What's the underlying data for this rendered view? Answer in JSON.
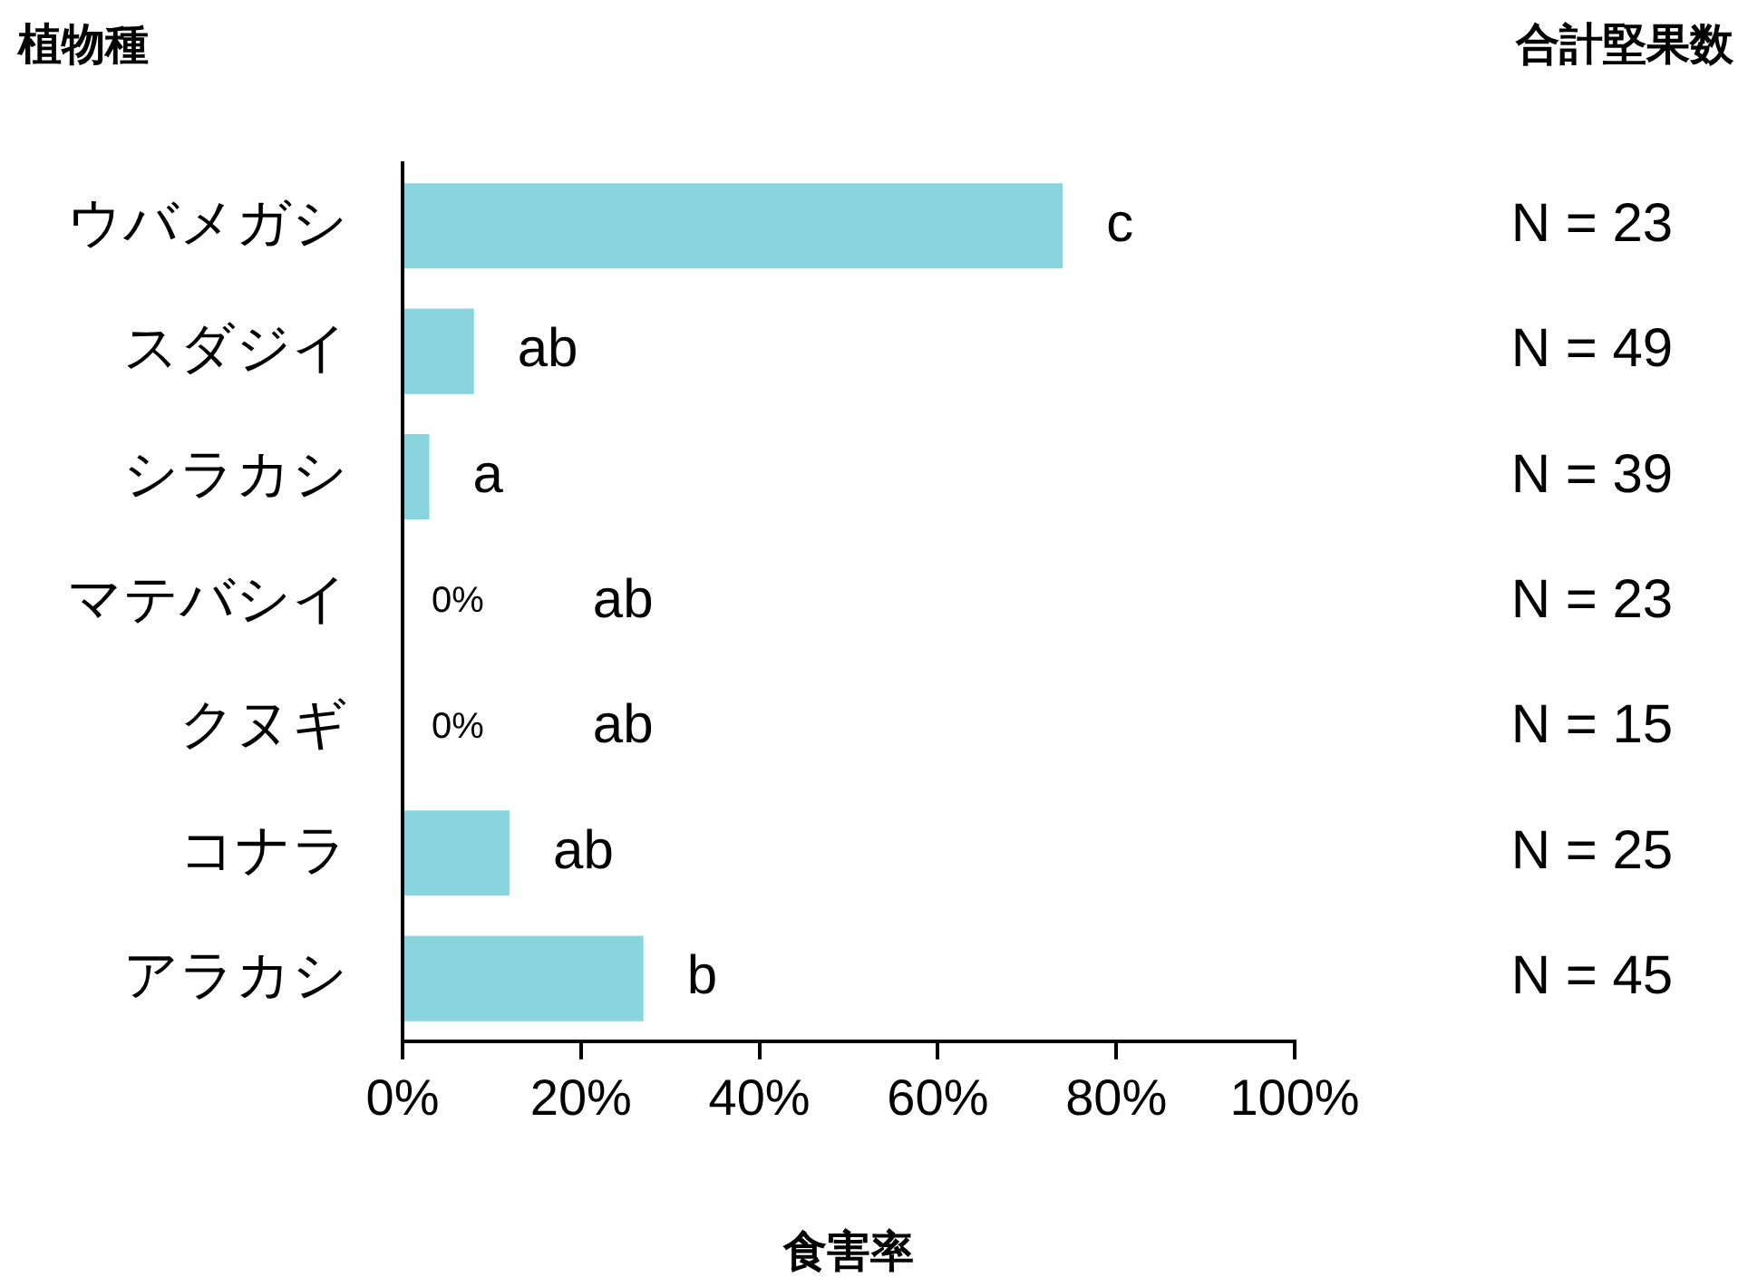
{
  "chart_data": {
    "type": "bar",
    "orientation": "horizontal",
    "ylabel": "植物種",
    "xlabel": "食害率",
    "categories": [
      "ウバメガシ",
      "スダジイ",
      "シラカシ",
      "マテバシイ",
      "クヌギ",
      "コナラ",
      "アラカシ"
    ],
    "values": [
      74,
      8,
      3,
      0,
      0,
      12,
      27
    ],
    "color": "#8ad4de",
    "value_labels": [
      null,
      null,
      null,
      "0%",
      "0%",
      null,
      null
    ],
    "xlim": [
      0,
      100
    ],
    "xticks": [
      {
        "value": 0,
        "label": "0%"
      },
      {
        "value": 20,
        "label": "20%"
      },
      {
        "value": 40,
        "label": "40%"
      },
      {
        "value": 60,
        "label": "60%"
      },
      {
        "value": 80,
        "label": "80%"
      },
      {
        "value": 100,
        "label": "100%"
      }
    ],
    "grid": false,
    "legend": false,
    "annotations": [
      "合計堅果数",
      {
        "text": "c",
        "x": 74,
        "y": "ウバメガシ"
      },
      {
        "text": "ab",
        "x": 8,
        "y": "スダジイ"
      },
      {
        "text": "a",
        "x": 3,
        "y": "シラカシ"
      },
      {
        "text": "ab",
        "x": 12,
        "y": "コナラ"
      },
      {
        "text": "b",
        "x": 27,
        "y": "アラカシ"
      },
      "N = 23",
      "N = 49",
      "N = 39",
      "N = 23",
      "N = 15",
      "N = 25",
      "N = 45",
      "ab",
      "ab"
    ]
  }
}
